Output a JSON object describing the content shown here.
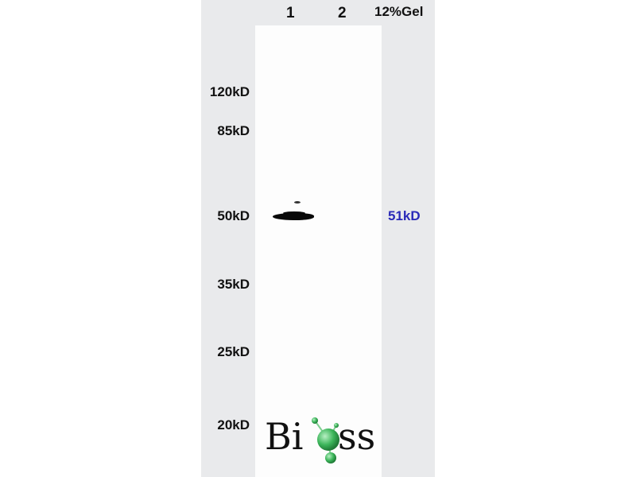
{
  "header": {
    "lanes": [
      "1",
      "2"
    ],
    "gel_label": "12%Gel"
  },
  "markers": [
    "120kD",
    "85kD",
    "50kD",
    "35kD",
    "25kD",
    "20kD"
  ],
  "target_label": "51kD",
  "colors": {
    "panel": "#e9eaec",
    "target_label": "#2a2ab8",
    "logo_green": "#3cb55a"
  },
  "logo": {
    "text": "Bioss"
  }
}
